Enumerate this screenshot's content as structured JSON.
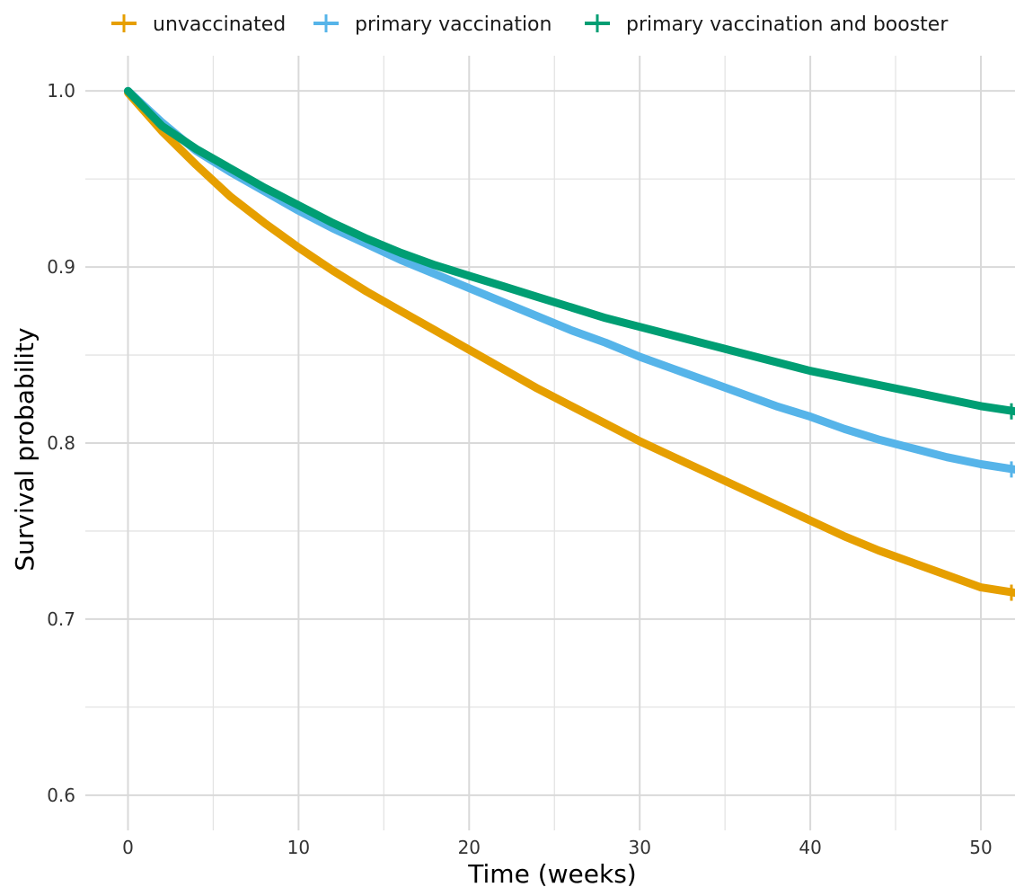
{
  "chart_data": {
    "type": "line",
    "title": "",
    "xlabel": "Time (weeks)",
    "ylabel": "Survival probability",
    "xlim": [
      -2.5,
      52
    ],
    "ylim": [
      0.58,
      1.02
    ],
    "x_ticks": [
      0,
      10,
      20,
      30,
      40,
      50
    ],
    "x_tick_labels": [
      "0",
      "10",
      "20",
      "30",
      "40",
      "50"
    ],
    "y_ticks": [
      0.6,
      0.7,
      0.8,
      0.9,
      1.0
    ],
    "y_tick_labels": [
      "0.6",
      "0.7",
      "0.8",
      "0.9",
      "1.0"
    ],
    "grid": true,
    "legend": "top",
    "series": [
      {
        "name": "unvaccinated",
        "color": "#E69F00",
        "x": [
          0,
          2,
          4,
          6,
          8,
          10,
          12,
          14,
          16,
          18,
          20,
          22,
          24,
          26,
          28,
          30,
          32,
          34,
          36,
          38,
          40,
          42,
          44,
          46,
          48,
          50,
          52
        ],
        "y": [
          0.999,
          0.977,
          0.958,
          0.94,
          0.925,
          0.911,
          0.898,
          0.886,
          0.875,
          0.864,
          0.853,
          0.842,
          0.831,
          0.821,
          0.811,
          0.801,
          0.792,
          0.783,
          0.774,
          0.765,
          0.756,
          0.747,
          0.739,
          0.732,
          0.725,
          0.718,
          0.715
        ]
      },
      {
        "name": "primary vaccination",
        "color": "#56B4E9",
        "x": [
          0,
          2,
          4,
          6,
          8,
          10,
          12,
          14,
          16,
          18,
          20,
          22,
          24,
          26,
          28,
          30,
          32,
          34,
          36,
          38,
          40,
          42,
          44,
          46,
          48,
          50,
          52
        ],
        "y": [
          1.0,
          0.982,
          0.966,
          0.954,
          0.943,
          0.932,
          0.922,
          0.913,
          0.904,
          0.896,
          0.888,
          0.88,
          0.872,
          0.864,
          0.857,
          0.849,
          0.842,
          0.835,
          0.828,
          0.821,
          0.815,
          0.808,
          0.802,
          0.797,
          0.792,
          0.788,
          0.785
        ]
      },
      {
        "name": "primary vaccination and booster",
        "color": "#009E73",
        "x": [
          0,
          2,
          4,
          6,
          8,
          10,
          12,
          14,
          16,
          18,
          20,
          22,
          24,
          26,
          28,
          30,
          32,
          34,
          36,
          38,
          40,
          42,
          44,
          46,
          48,
          50,
          52
        ],
        "y": [
          1.0,
          0.98,
          0.967,
          0.956,
          0.945,
          0.935,
          0.925,
          0.916,
          0.908,
          0.901,
          0.895,
          0.889,
          0.883,
          0.877,
          0.871,
          0.866,
          0.861,
          0.856,
          0.851,
          0.846,
          0.841,
          0.837,
          0.833,
          0.829,
          0.825,
          0.821,
          0.818
        ]
      }
    ]
  }
}
